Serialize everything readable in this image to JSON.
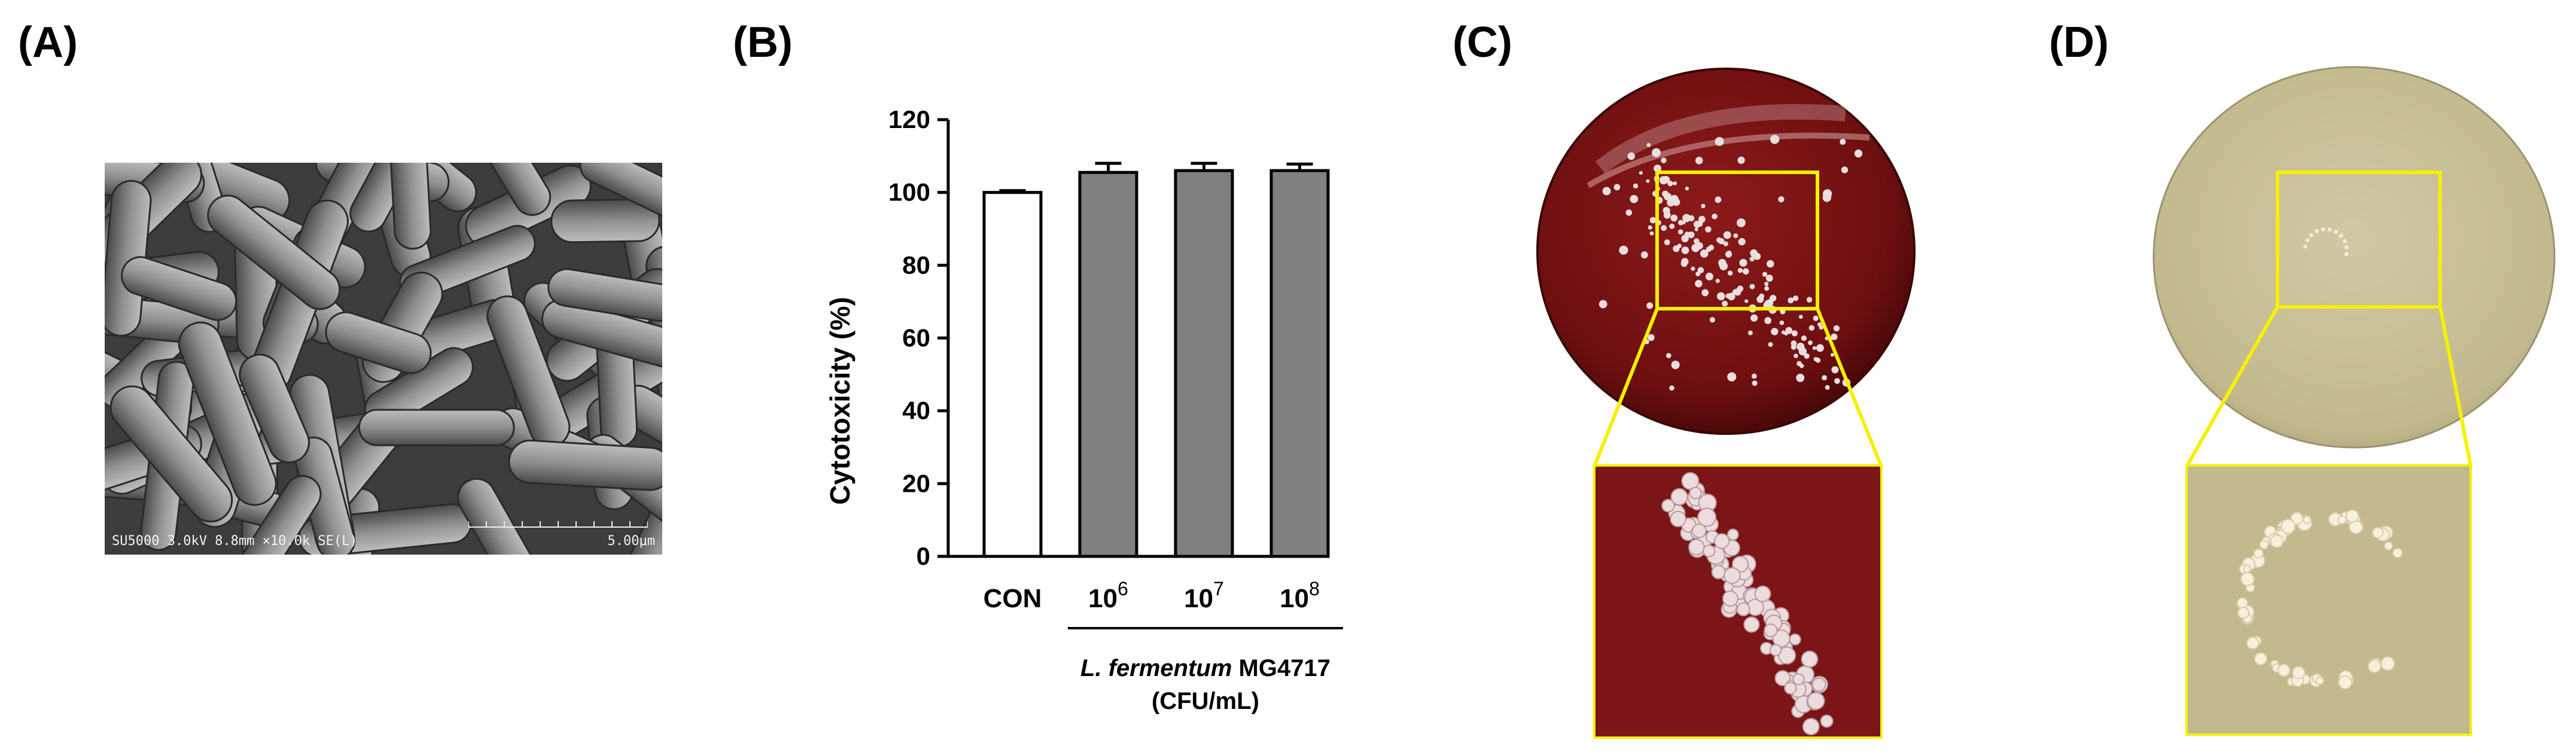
{
  "panels": {
    "a": {
      "label": "(A)"
    },
    "b": {
      "label": "(B)"
    },
    "c": {
      "label": "(C)"
    },
    "d": {
      "label": "(D)"
    }
  },
  "sem": {
    "caption_left": "SU5000 3.0kV 8.8mm ×10.0k SE(L)",
    "scale_label": "5.00μm"
  },
  "chart_data": {
    "type": "bar",
    "categories": [
      "CON",
      "10^6",
      "10^7",
      "10^8"
    ],
    "category_display": [
      {
        "base": "CON",
        "exp": ""
      },
      {
        "base": "10",
        "exp": "6"
      },
      {
        "base": "10",
        "exp": "7"
      },
      {
        "base": "10",
        "exp": "8"
      }
    ],
    "values": [
      100,
      105.5,
      106,
      106
    ],
    "errors": [
      0.5,
      2.5,
      2.0,
      1.8
    ],
    "bar_colors": [
      "#ffffff",
      "#808080",
      "#808080",
      "#808080"
    ],
    "ylabel": "Cytotoxicity (%)",
    "ylim": [
      0,
      120
    ],
    "yticks": [
      0,
      20,
      40,
      60,
      80,
      100,
      120
    ],
    "group_label_italic": "L. fermentum",
    "group_label_rest": " MG4717",
    "group_label_unit": "(CFU/mL)",
    "grid": false
  },
  "colors": {
    "blood_agar": "#7a1414",
    "mrs_agar": "#c9c19a",
    "highlight_box": "#f5f100"
  }
}
